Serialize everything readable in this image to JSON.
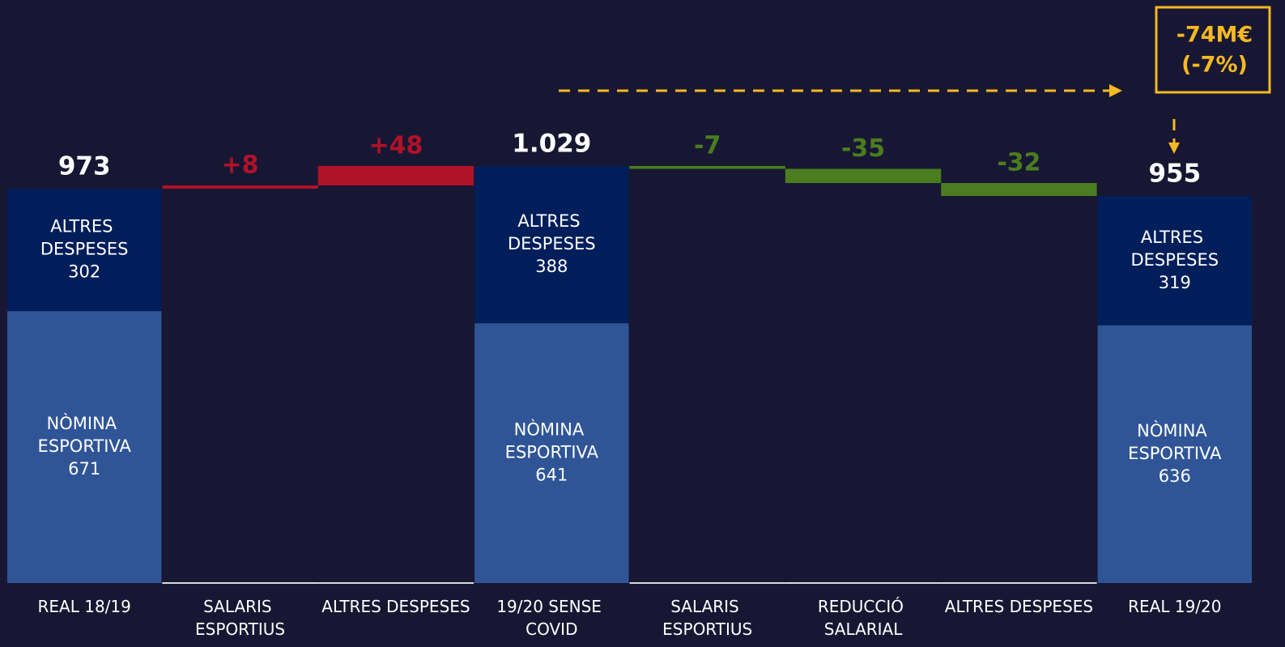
{
  "chart_data": {
    "type": "waterfall",
    "categories": [
      "REAL 18/19",
      "SALARIS ESPORTIUS",
      "ALTRES DESPESES",
      "19/20 SENSE COVID",
      "SALARIS ESPORTIUS",
      "REDUCCIÓ SALARIAL",
      "ALTRES DESPESES",
      "REAL 19/20"
    ],
    "series": [
      {
        "name": "NÒMINA ESPORTIVA",
        "color": "#2f5597",
        "values": [
          671,
          null,
          null,
          641,
          null,
          null,
          null,
          636
        ]
      },
      {
        "name": "ALTRES DESPESES",
        "color": "#001e5a",
        "values": [
          302,
          null,
          null,
          388,
          null,
          null,
          null,
          319
        ]
      }
    ],
    "totals": [
      973,
      null,
      null,
      1029,
      null,
      null,
      null,
      955
    ],
    "total_labels": [
      "973",
      null,
      null,
      "1.029",
      null,
      null,
      null,
      "955"
    ],
    "changes": [
      null,
      8,
      48,
      null,
      -7,
      -35,
      -32,
      null
    ],
    "value_labels": [
      null,
      "+8",
      "+48",
      null,
      "-7",
      "-35",
      "-32",
      null
    ],
    "increase_color": "#b01228",
    "decrease_color": "#4a7d1f",
    "annotation": [
      "-74M€",
      "(-7%)"
    ]
  }
}
